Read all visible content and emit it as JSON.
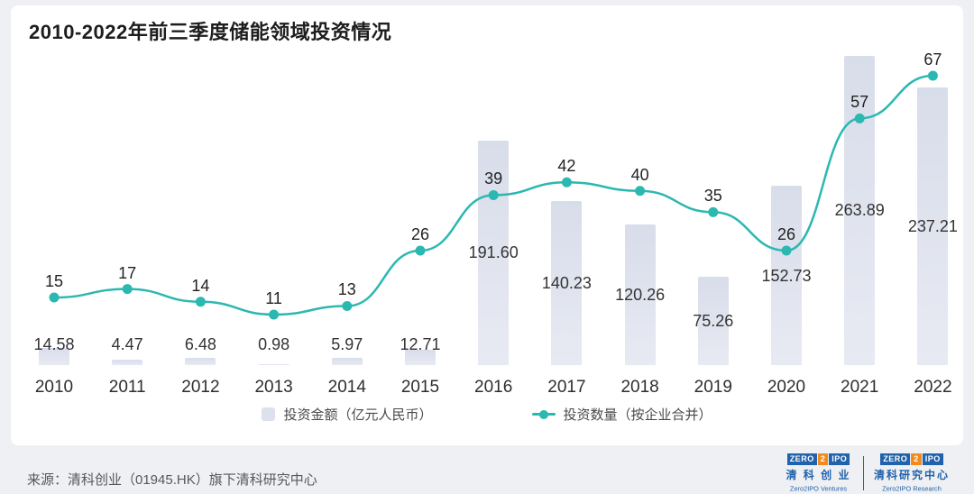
{
  "title": "2010-2022年前三季度储能领域投资情况",
  "chart_data": {
    "type": "bar+line",
    "categories": [
      "2010",
      "2011",
      "2012",
      "2013",
      "2014",
      "2015",
      "2016",
      "2017",
      "2018",
      "2019",
      "2020",
      "2021",
      "2022"
    ],
    "series": [
      {
        "name": "投资金额（亿元人民币）",
        "type": "bar",
        "values": [
          14.58,
          4.47,
          6.48,
          0.98,
          5.97,
          12.71,
          191.6,
          140.23,
          120.26,
          75.26,
          152.73,
          263.89,
          237.21
        ]
      },
      {
        "name": "投资数量（按企业合并）",
        "type": "line",
        "values": [
          15,
          17,
          14,
          11,
          13,
          26,
          39,
          42,
          40,
          35,
          26,
          57,
          67
        ]
      }
    ],
    "bar_color": "#dde1ee",
    "line_color": "#2bb8b1",
    "legend_position": "bottom",
    "value_labels": true,
    "title": "2010-2022年前三季度储能领域投资情况"
  },
  "legend": [
    {
      "label": "投资金额（亿元人民币）"
    },
    {
      "label": "投资数量（按企业合并）"
    }
  ],
  "footer": {
    "source": "来源：清科创业（01945.HK）旗下清科研究中心"
  },
  "logos": [
    {
      "zero": "ZERO",
      "two": "2",
      "ipo": "IPO",
      "cn": "清 科 创 业",
      "en": "Zero2IPO Ventures"
    },
    {
      "zero": "ZERO",
      "two": "2",
      "ipo": "IPO",
      "cn": "清科研究中心",
      "en": "Zero2IPO Research"
    }
  ]
}
